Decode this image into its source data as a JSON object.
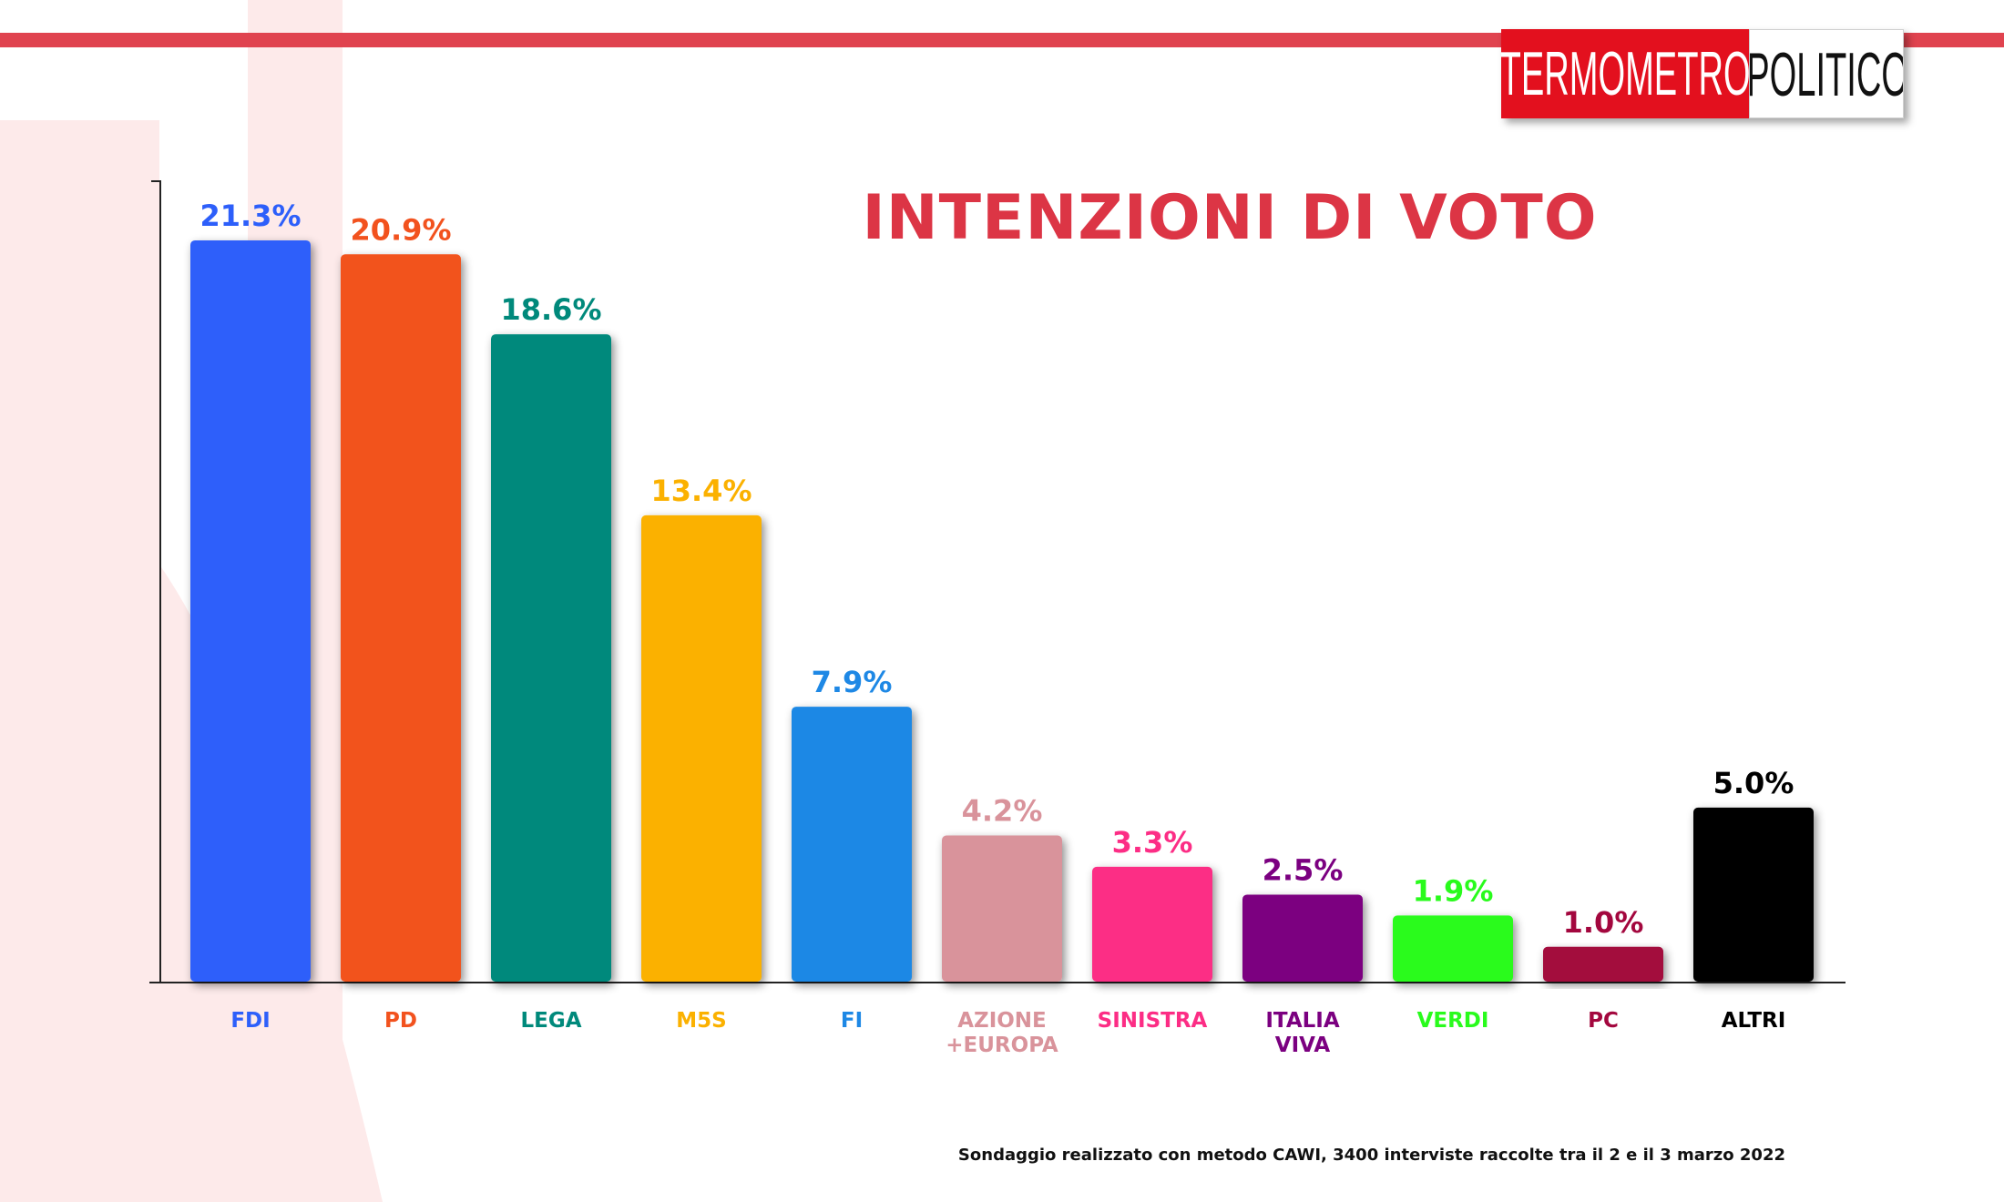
{
  "brand": {
    "logo_left": "TERMOMETRO",
    "logo_right": "POLITICO",
    "accent_color": "#e0434f",
    "logo_red": "#e3101e"
  },
  "chart_data": {
    "type": "bar",
    "title": "INTENZIONI DI VOTO",
    "xlabel": "",
    "ylabel": "",
    "ylim": [
      0,
      23
    ],
    "grid": false,
    "categories": [
      "FDI",
      "PD",
      "LEGA",
      "M5S",
      "FI",
      "AZIONE +EUROPA",
      "SINISTRA",
      "ITALIA VIVA",
      "VERDI",
      "PC",
      "ALTRI"
    ],
    "category_lines": [
      [
        "FDI"
      ],
      [
        "PD"
      ],
      [
        "LEGA"
      ],
      [
        "M5S"
      ],
      [
        "FI"
      ],
      [
        "AZIONE",
        "+EUROPA"
      ],
      [
        "SINISTRA"
      ],
      [
        "ITALIA",
        "VIVA"
      ],
      [
        "VERDI"
      ],
      [
        "PC"
      ],
      [
        "ALTRI"
      ]
    ],
    "values": [
      21.3,
      20.9,
      18.6,
      13.4,
      7.9,
      4.2,
      3.3,
      2.5,
      1.9,
      1.0,
      5.0
    ],
    "value_labels": [
      "21.3%",
      "20.9%",
      "18.6%",
      "13.4%",
      "7.9%",
      "4.2%",
      "3.3%",
      "2.5%",
      "1.9%",
      "1.0%",
      "5.0%"
    ],
    "colors": [
      "#2d5ffa",
      "#f2521e",
      "#00897b",
      "#fbb100",
      "#1e88e5",
      "#d9939b",
      "#fc2d85",
      "#7b0080",
      "#29fb1c",
      "#a3073e",
      "#000000"
    ],
    "label_colors": [
      "#2d5ffa",
      "#f2521e",
      "#00897b",
      "#fbb100",
      "#1e88e5",
      "#d9939b",
      "#fc2d85",
      "#7b0080",
      "#29fb1c",
      "#a3073e",
      "#000000"
    ]
  },
  "footnote": "Sondaggio realizzato con metodo CAWI, 3400 interviste raccolte tra il 2 e il 3 marzo 2022"
}
